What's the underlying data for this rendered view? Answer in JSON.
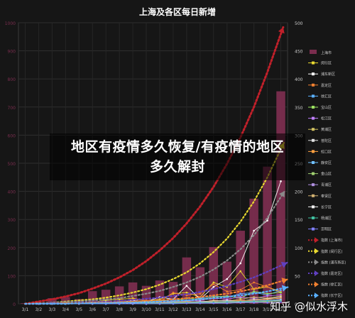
{
  "chart_data": {
    "type": "bar",
    "title": "上海及各区每日新增",
    "categories": [
      "3/1",
      "3/2",
      "3/3",
      "3/4",
      "3/5",
      "3/6",
      "3/7",
      "3/8",
      "3/9",
      "3/10",
      "3/11",
      "3/12",
      "3/13",
      "3/14",
      "3/15",
      "3/16",
      "3/17",
      "3/18",
      "3/19",
      "3/20"
    ],
    "ylim_left": [
      0,
      1000
    ],
    "ylim_right": [
      0,
      500
    ],
    "yticks_left": [
      0,
      100,
      200,
      300,
      400,
      500,
      600,
      700,
      800,
      900,
      1000
    ],
    "yticks_right": [
      0,
      50,
      100,
      150,
      200,
      250,
      300,
      350,
      400,
      450,
      500
    ],
    "bar_series": {
      "name": "上海市",
      "color": "#7a2d4e",
      "values": [
        2,
        5,
        20,
        24,
        17,
        45,
        50,
        62,
        76,
        64,
        83,
        78,
        165,
        130,
        202,
        150,
        260,
        374,
        488,
        756
      ]
    },
    "line_series": [
      {
        "name": "闵行区",
        "color": "#e8d830",
        "values": [
          0,
          0,
          0,
          2,
          1,
          3,
          6,
          8,
          10,
          5,
          8,
          18,
          20,
          12,
          38,
          30,
          58,
          26,
          30,
          20
        ]
      },
      {
        "name": "浦东新区",
        "color": "#ffffff",
        "values": [
          0,
          0,
          0,
          1,
          0,
          2,
          3,
          2,
          6,
          4,
          12,
          8,
          32,
          8,
          30,
          44,
          72,
          130,
          148,
          218
        ]
      },
      {
        "name": "嘉定区",
        "color": "#f08030",
        "values": [
          0,
          0,
          0,
          0,
          1,
          1,
          2,
          4,
          8,
          6,
          4,
          20,
          15,
          18,
          35,
          22,
          25,
          38,
          30,
          22
        ]
      },
      {
        "name": "徐汇区",
        "color": "#5ab0ff",
        "values": [
          0,
          0,
          1,
          0,
          0,
          1,
          2,
          3,
          4,
          2,
          5,
          8,
          6,
          10,
          14,
          12,
          18,
          20,
          16,
          24
        ]
      },
      {
        "name": "宝山区",
        "color": "#9be060",
        "values": [
          0,
          0,
          0,
          0,
          0,
          1,
          1,
          2,
          3,
          3,
          6,
          4,
          10,
          8,
          12,
          14,
          10,
          22,
          18,
          20
        ]
      },
      {
        "name": "松江区",
        "color": "#c080ff",
        "values": [
          0,
          0,
          0,
          0,
          0,
          0,
          1,
          1,
          2,
          1,
          2,
          4,
          5,
          6,
          10,
          8,
          12,
          10,
          14,
          16
        ]
      },
      {
        "name": "黄浦区",
        "color": "#d0c060",
        "values": [
          0,
          0,
          0,
          0,
          0,
          0,
          0,
          1,
          1,
          2,
          1,
          3,
          4,
          3,
          6,
          5,
          8,
          12,
          10,
          14
        ]
      },
      {
        "name": "普陀区",
        "color": "#e0e0e0",
        "values": [
          0,
          0,
          0,
          0,
          0,
          0,
          1,
          0,
          1,
          2,
          2,
          2,
          3,
          4,
          5,
          6,
          5,
          8,
          9,
          12
        ]
      },
      {
        "name": "虹口区",
        "color": "#ffa040",
        "values": [
          0,
          0,
          0,
          0,
          0,
          0,
          0,
          1,
          0,
          1,
          2,
          2,
          3,
          3,
          4,
          4,
          6,
          6,
          8,
          10
        ]
      },
      {
        "name": "静安区",
        "color": "#70c0ff",
        "values": [
          0,
          0,
          0,
          0,
          0,
          0,
          0,
          0,
          1,
          1,
          1,
          2,
          2,
          3,
          3,
          4,
          4,
          5,
          6,
          8
        ]
      },
      {
        "name": "金山区",
        "color": "#a0d070",
        "values": [
          0,
          0,
          0,
          0,
          0,
          0,
          0,
          0,
          0,
          1,
          0,
          1,
          1,
          2,
          2,
          3,
          2,
          4,
          3,
          5
        ]
      },
      {
        "name": "青浦区",
        "color": "#b090e0",
        "values": [
          0,
          0,
          0,
          0,
          0,
          0,
          0,
          0,
          0,
          0,
          1,
          1,
          2,
          2,
          3,
          2,
          4,
          3,
          5,
          6
        ]
      },
      {
        "name": "奉贤区",
        "color": "#d0b070",
        "values": [
          0,
          0,
          0,
          0,
          0,
          0,
          0,
          0,
          0,
          0,
          0,
          1,
          1,
          1,
          2,
          2,
          3,
          3,
          4,
          4
        ]
      },
      {
        "name": "长宁区",
        "color": "#f0f0f0",
        "values": [
          0,
          0,
          0,
          0,
          0,
          0,
          0,
          0,
          1,
          0,
          1,
          1,
          2,
          2,
          2,
          3,
          3,
          4,
          5,
          6
        ]
      },
      {
        "name": "杨浦区",
        "color": "#40c0a0",
        "values": [
          0,
          0,
          0,
          0,
          0,
          0,
          0,
          0,
          0,
          1,
          1,
          1,
          2,
          2,
          3,
          3,
          4,
          4,
          5,
          5
        ]
      },
      {
        "name": "崇明区",
        "color": "#8080ff",
        "values": [
          0,
          0,
          0,
          0,
          0,
          0,
          0,
          0,
          0,
          0,
          0,
          0,
          1,
          1,
          1,
          1,
          2,
          2,
          2,
          3
        ]
      }
    ],
    "trend_series": [
      {
        "name": "指数 (上海市)",
        "color": "#c0202a",
        "values": [
          0,
          4,
          8,
          13,
          19,
          27,
          36,
          47,
          60,
          76,
          95,
          117,
          143,
          173,
          208,
          249,
          296,
          350,
          412,
          480
        ]
      },
      {
        "name": "指数 (闵行区)",
        "color": "#e8d830",
        "values": [
          0,
          1,
          2,
          4,
          6,
          8,
          11,
          15,
          20,
          26,
          34,
          44,
          56,
          72,
          92,
          116,
          146,
          182,
          225,
          275
        ]
      },
      {
        "name": "指数 (浦东新区)",
        "color": "#8a8a8a",
        "values": [
          0,
          1,
          2,
          3,
          4,
          6,
          8,
          10,
          14,
          18,
          23,
          30,
          38,
          48,
          61,
          77,
          97,
          122,
          153,
          190
        ]
      },
      {
        "name": "指数 (嘉定区)",
        "color": "#6040c0",
        "values": [
          0,
          0,
          1,
          1,
          2,
          3,
          4,
          5,
          7,
          9,
          11,
          14,
          17,
          21,
          26,
          32,
          39,
          47,
          57,
          68
        ]
      },
      {
        "name": "指数 (徐汇区)",
        "color": "#f08030",
        "values": [
          0,
          0,
          0,
          1,
          1,
          2,
          2,
          3,
          4,
          5,
          6,
          8,
          10,
          12,
          15,
          18,
          22,
          27,
          33,
          40
        ]
      },
      {
        "name": "指数 (长宁区)",
        "color": "#5ab0ff",
        "values": [
          0,
          0,
          0,
          0,
          1,
          1,
          1,
          2,
          2,
          3,
          4,
          5,
          6,
          8,
          10,
          12,
          15,
          18,
          22,
          27
        ]
      }
    ]
  },
  "overlay": {
    "line1": "地区有疫情多久恢复/有疫情的地区",
    "line2": "多久解封"
  },
  "watermark": "知乎 @似水浮木"
}
